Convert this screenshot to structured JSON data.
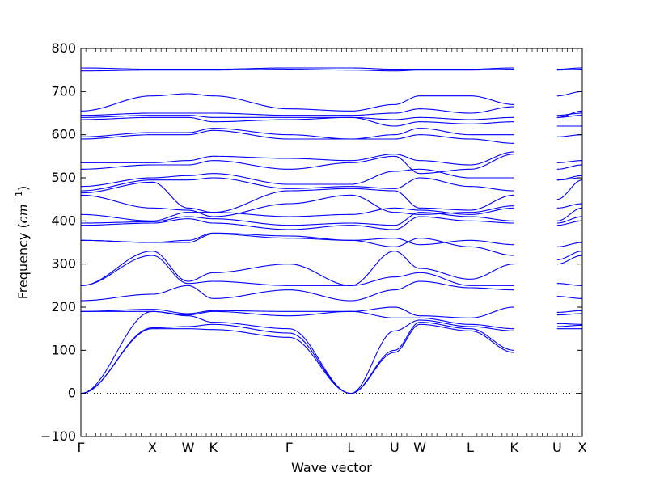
{
  "chart_data": {
    "type": "line",
    "xlabel": "Wave vector",
    "ylabel_prefix": "Frequency (",
    "ylabel_unit": "cm",
    "ylabel_exp": "−1",
    "ylabel_suffix": ")",
    "ylim": [
      -100,
      800
    ],
    "yticks": [
      -100,
      0,
      100,
      200,
      300,
      400,
      500,
      600,
      700,
      800
    ],
    "grid": false,
    "zero_line": true,
    "line_color": "#0000ff",
    "high_symmetry_points": [
      {
        "label": "Γ",
        "x": 0.0
      },
      {
        "label": "X",
        "x": 1.0
      },
      {
        "label": "W",
        "x": 1.5
      },
      {
        "label": "K",
        "x": 1.854
      },
      {
        "label": "Γ",
        "x": 2.914
      },
      {
        "label": "L",
        "x": 3.78
      },
      {
        "label": "U",
        "x": 4.392
      },
      {
        "label": "W",
        "x": 4.745
      },
      {
        "label": "L",
        "x": 5.452
      },
      {
        "label": "K",
        "x": 6.064
      },
      {
        "label": "U",
        "x": 6.667
      },
      {
        "label": "X",
        "x": 7.02
      }
    ],
    "segments": [
      [
        0,
        1
      ],
      [
        1,
        2
      ],
      [
        2,
        3
      ],
      [
        3,
        4
      ],
      [
        4,
        5
      ],
      [
        5,
        6
      ],
      [
        6,
        7
      ],
      [
        7,
        8
      ],
      [
        8,
        9
      ],
      [
        10,
        11
      ]
    ],
    "bands": [
      [
        0,
        150,
        150,
        148,
        130,
        0,
        95,
        160,
        145,
        95,
        148,
        150,
        150
      ],
      [
        0,
        152,
        155,
        160,
        140,
        0,
        100,
        165,
        150,
        100,
        150,
        155,
        158
      ],
      [
        0,
        190,
        180,
        165,
        150,
        0,
        145,
        170,
        155,
        145,
        165,
        162,
        160
      ],
      [
        190,
        190,
        182,
        190,
        180,
        190,
        175,
        175,
        160,
        150,
        178,
        182,
        185
      ],
      [
        190,
        195,
        185,
        192,
        190,
        190,
        200,
        180,
        175,
        200,
        190,
        188,
        192
      ],
      [
        215,
        230,
        250,
        220,
        240,
        215,
        240,
        260,
        245,
        240,
        245,
        225,
        220
      ],
      [
        250,
        320,
        255,
        260,
        250,
        250,
        270,
        280,
        250,
        250,
        270,
        255,
        250
      ],
      [
        250,
        330,
        260,
        280,
        300,
        250,
        330,
        290,
        265,
        300,
        280,
        300,
        320
      ],
      [
        355,
        350,
        350,
        370,
        360,
        355,
        340,
        360,
        340,
        320,
        340,
        310,
        330
      ],
      [
        355,
        350,
        355,
        372,
        365,
        355,
        360,
        345,
        355,
        345,
        360,
        340,
        350
      ],
      [
        390,
        395,
        405,
        395,
        380,
        390,
        380,
        410,
        400,
        395,
        395,
        390,
        400
      ],
      [
        395,
        398,
        410,
        405,
        390,
        395,
        390,
        420,
        410,
        400,
        405,
        395,
        410
      ],
      [
        415,
        400,
        420,
        420,
        410,
        415,
        430,
        425,
        415,
        430,
        420,
        400,
        430
      ],
      [
        460,
        430,
        425,
        410,
        440,
        460,
        420,
        415,
        420,
        435,
        420,
        430,
        440
      ],
      [
        465,
        490,
        430,
        420,
        470,
        475,
        470,
        430,
        425,
        460,
        440,
        450,
        495
      ],
      [
        470,
        495,
        495,
        500,
        475,
        480,
        475,
        500,
        480,
        470,
        490,
        495,
        500
      ],
      [
        480,
        500,
        505,
        510,
        485,
        485,
        515,
        520,
        500,
        500,
        500,
        495,
        505
      ],
      [
        520,
        530,
        530,
        540,
        520,
        535,
        550,
        510,
        520,
        555,
        530,
        520,
        530
      ],
      [
        535,
        535,
        540,
        550,
        545,
        540,
        555,
        540,
        530,
        560,
        535,
        535,
        540
      ],
      [
        590,
        600,
        600,
        610,
        590,
        590,
        590,
        600,
        590,
        580,
        590,
        595,
        600
      ],
      [
        595,
        605,
        605,
        615,
        600,
        590,
        600,
        615,
        600,
        600,
        615,
        620,
        620
      ],
      [
        635,
        640,
        640,
        630,
        635,
        640,
        620,
        630,
        625,
        630,
        640,
        640,
        645
      ],
      [
        640,
        645,
        645,
        640,
        640,
        640,
        635,
        640,
        635,
        640,
        645,
        645,
        650
      ],
      [
        645,
        650,
        650,
        650,
        645,
        645,
        650,
        660,
        650,
        665,
        655,
        640,
        655
      ],
      [
        655,
        690,
        695,
        690,
        660,
        655,
        670,
        690,
        690,
        670,
        695,
        690,
        700
      ],
      [
        748,
        750,
        750,
        750,
        752,
        750,
        748,
        750,
        750,
        752,
        750,
        750,
        752
      ],
      [
        755,
        752,
        752,
        752,
        755,
        755,
        752,
        752,
        752,
        755,
        752,
        752,
        755
      ]
    ]
  }
}
